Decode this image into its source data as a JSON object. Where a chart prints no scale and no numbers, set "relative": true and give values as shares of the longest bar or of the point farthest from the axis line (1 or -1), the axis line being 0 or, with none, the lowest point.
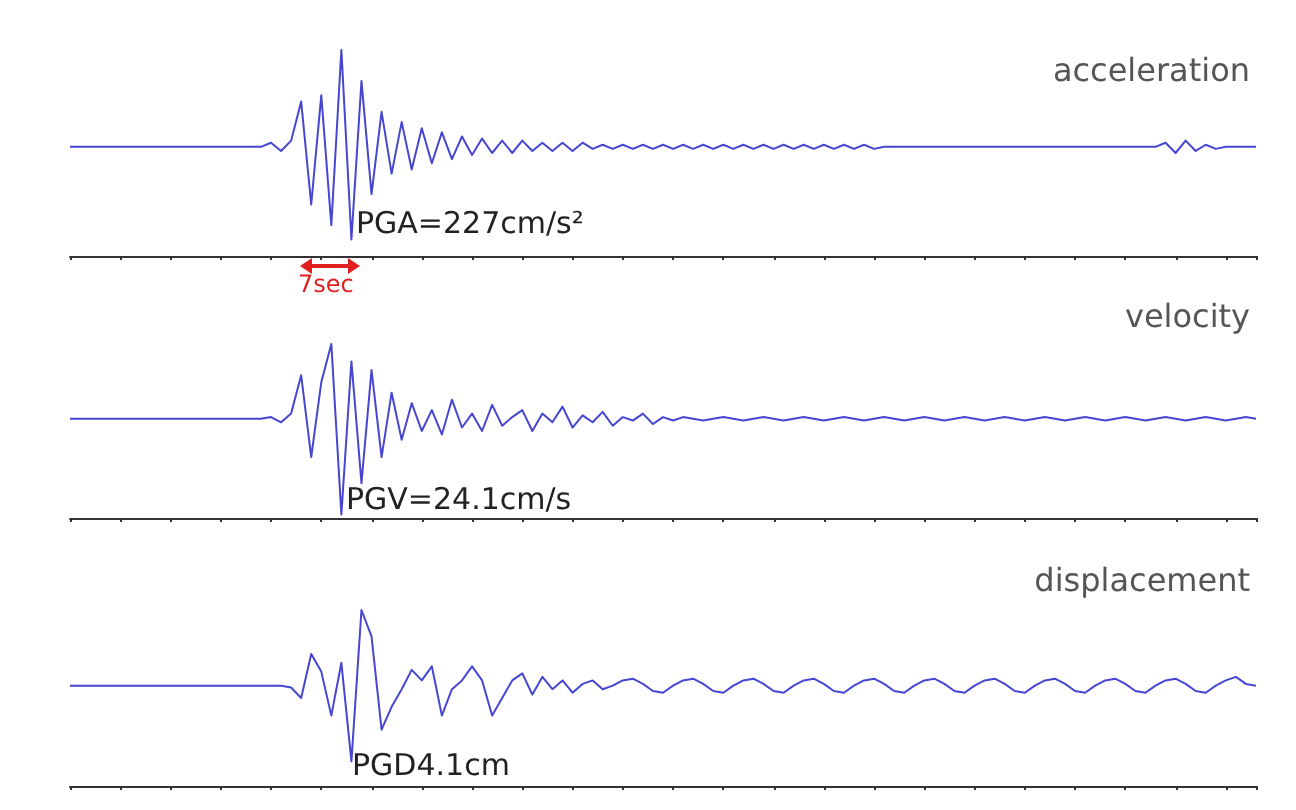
{
  "chart_data": [
    {
      "type": "line",
      "relative": true,
      "title": "acceleration",
      "annotations": [
        "PGA=227cm/s²",
        "7sec"
      ],
      "categories": [
        null,
        null,
        null,
        null,
        null,
        null,
        null,
        null,
        null,
        null,
        null,
        null,
        null,
        null,
        null,
        null,
        null,
        null,
        null,
        null,
        null,
        null,
        null,
        null,
        null,
        null,
        null,
        null,
        null,
        null,
        null,
        null,
        null,
        null,
        null,
        null,
        null,
        null,
        null,
        null,
        null,
        null,
        null,
        null,
        null,
        null,
        null,
        null,
        null,
        null,
        null,
        null,
        null,
        null,
        null,
        null,
        null,
        null,
        null,
        null,
        null,
        null,
        null,
        null,
        null,
        null,
        null,
        null,
        null,
        null,
        null,
        null,
        null,
        null,
        null,
        null,
        null,
        null,
        null,
        null,
        null,
        null,
        null,
        null,
        null,
        null,
        null,
        null,
        null,
        null,
        null,
        null,
        null,
        null,
        null,
        null,
        null,
        null,
        null,
        null,
        null,
        null,
        null,
        null,
        null,
        null,
        null,
        null,
        null,
        null,
        null,
        null,
        null,
        null,
        null,
        null,
        null,
        null,
        null
      ],
      "series": [
        {
          "color": "#4646d2",
          "values": [
            0.53,
            0.53,
            0.53,
            0.53,
            0.53,
            0.53,
            0.53,
            0.53,
            0.53,
            0.53,
            0.53,
            0.53,
            0.53,
            0.53,
            0.53,
            0.53,
            0.53,
            0.53,
            0.53,
            0.53,
            0.55,
            0.51,
            0.56,
            0.75,
            0.25,
            0.78,
            0.15,
            1.0,
            0.08,
            0.85,
            0.3,
            0.7,
            0.4,
            0.65,
            0.42,
            0.62,
            0.45,
            0.6,
            0.47,
            0.58,
            0.49,
            0.57,
            0.5,
            0.56,
            0.5,
            0.56,
            0.51,
            0.55,
            0.51,
            0.55,
            0.51,
            0.55,
            0.52,
            0.54,
            0.52,
            0.54,
            0.52,
            0.54,
            0.52,
            0.54,
            0.52,
            0.54,
            0.52,
            0.54,
            0.52,
            0.54,
            0.52,
            0.54,
            0.52,
            0.54,
            0.52,
            0.54,
            0.52,
            0.54,
            0.52,
            0.54,
            0.52,
            0.54,
            0.52,
            0.54,
            0.52,
            0.53,
            0.53,
            0.53,
            0.53,
            0.53,
            0.53,
            0.53,
            0.53,
            0.53,
            0.53,
            0.53,
            0.53,
            0.53,
            0.53,
            0.53,
            0.53,
            0.53,
            0.53,
            0.53,
            0.53,
            0.53,
            0.53,
            0.53,
            0.53,
            0.53,
            0.53,
            0.53,
            0.53,
            0.55,
            0.5,
            0.56,
            0.51,
            0.54,
            0.52,
            0.53,
            0.53,
            0.53,
            0.53
          ]
        }
      ]
    },
    {
      "type": "line",
      "relative": true,
      "title": "velocity",
      "annotations": [
        "PGV=24.1cm/s"
      ],
      "categories": [
        null,
        null,
        null,
        null,
        null,
        null,
        null,
        null,
        null,
        null,
        null,
        null,
        null,
        null,
        null,
        null,
        null,
        null,
        null,
        null,
        null,
        null,
        null,
        null,
        null,
        null,
        null,
        null,
        null,
        null,
        null,
        null,
        null,
        null,
        null,
        null,
        null,
        null,
        null,
        null,
        null,
        null,
        null,
        null,
        null,
        null,
        null,
        null,
        null,
        null,
        null,
        null,
        null,
        null,
        null,
        null,
        null,
        null,
        null,
        null,
        null,
        null,
        null,
        null,
        null,
        null,
        null,
        null,
        null,
        null,
        null,
        null,
        null,
        null,
        null,
        null,
        null,
        null,
        null,
        null,
        null,
        null,
        null,
        null,
        null,
        null,
        null,
        null,
        null,
        null,
        null,
        null,
        null,
        null,
        null,
        null,
        null,
        null,
        null,
        null,
        null,
        null,
        null,
        null,
        null,
        null,
        null,
        null,
        null,
        null,
        null,
        null,
        null,
        null,
        null,
        null,
        null,
        null,
        null
      ],
      "series": [
        {
          "color": "#4646d2",
          "values": [
            0.57,
            0.57,
            0.57,
            0.57,
            0.57,
            0.57,
            0.57,
            0.57,
            0.57,
            0.57,
            0.57,
            0.57,
            0.57,
            0.57,
            0.57,
            0.57,
            0.57,
            0.57,
            0.57,
            0.57,
            0.58,
            0.55,
            0.6,
            0.82,
            0.35,
            0.78,
            1.0,
            0.02,
            0.9,
            0.2,
            0.85,
            0.35,
            0.72,
            0.45,
            0.66,
            0.5,
            0.62,
            0.48,
            0.68,
            0.52,
            0.6,
            0.5,
            0.65,
            0.53,
            0.58,
            0.62,
            0.5,
            0.6,
            0.55,
            0.64,
            0.52,
            0.59,
            0.55,
            0.61,
            0.53,
            0.58,
            0.56,
            0.6,
            0.54,
            0.58,
            0.56,
            0.58,
            0.57,
            0.56,
            0.57,
            0.58,
            0.57,
            0.56,
            0.57,
            0.58,
            0.57,
            0.56,
            0.57,
            0.58,
            0.57,
            0.56,
            0.57,
            0.58,
            0.57,
            0.56,
            0.57,
            0.58,
            0.57,
            0.56,
            0.57,
            0.58,
            0.57,
            0.56,
            0.57,
            0.58,
            0.57,
            0.56,
            0.57,
            0.58,
            0.57,
            0.56,
            0.57,
            0.58,
            0.57,
            0.56,
            0.57,
            0.58,
            0.57,
            0.56,
            0.57,
            0.58,
            0.57,
            0.56,
            0.57,
            0.58,
            0.57,
            0.56,
            0.57,
            0.58,
            0.57,
            0.56,
            0.57,
            0.58,
            0.57
          ]
        }
      ]
    },
    {
      "type": "line",
      "relative": true,
      "title": "displacement",
      "annotations": [
        "PGD4.1cm"
      ],
      "categories": [
        null,
        null,
        null,
        null,
        null,
        null,
        null,
        null,
        null,
        null,
        null,
        null,
        null,
        null,
        null,
        null,
        null,
        null,
        null,
        null,
        null,
        null,
        null,
        null,
        null,
        null,
        null,
        null,
        null,
        null,
        null,
        null,
        null,
        null,
        null,
        null,
        null,
        null,
        null,
        null,
        null,
        null,
        null,
        null,
        null,
        null,
        null,
        null,
        null,
        null,
        null,
        null,
        null,
        null,
        null,
        null,
        null,
        null,
        null,
        null,
        null,
        null,
        null,
        null,
        null,
        null,
        null,
        null,
        null,
        null,
        null,
        null,
        null,
        null,
        null,
        null,
        null,
        null,
        null,
        null,
        null,
        null,
        null,
        null,
        null,
        null,
        null,
        null,
        null,
        null,
        null,
        null,
        null,
        null,
        null,
        null,
        null,
        null,
        null,
        null,
        null,
        null,
        null,
        null,
        null,
        null,
        null,
        null,
        null,
        null,
        null,
        null,
        null,
        null,
        null,
        null,
        null,
        null,
        null
      ],
      "series": [
        {
          "color": "#4646d2",
          "values": [
            0.57,
            0.57,
            0.57,
            0.57,
            0.57,
            0.57,
            0.57,
            0.57,
            0.57,
            0.57,
            0.57,
            0.57,
            0.57,
            0.57,
            0.57,
            0.57,
            0.57,
            0.57,
            0.57,
            0.57,
            0.57,
            0.57,
            0.56,
            0.5,
            0.75,
            0.65,
            0.4,
            0.7,
            0.14,
            1.0,
            0.85,
            0.32,
            0.45,
            0.55,
            0.66,
            0.6,
            0.68,
            0.4,
            0.55,
            0.6,
            0.68,
            0.6,
            0.4,
            0.5,
            0.6,
            0.64,
            0.52,
            0.62,
            0.55,
            0.6,
            0.53,
            0.58,
            0.6,
            0.55,
            0.57,
            0.6,
            0.61,
            0.58,
            0.54,
            0.53,
            0.57,
            0.6,
            0.61,
            0.58,
            0.54,
            0.53,
            0.57,
            0.6,
            0.61,
            0.58,
            0.54,
            0.53,
            0.57,
            0.6,
            0.61,
            0.58,
            0.54,
            0.53,
            0.57,
            0.6,
            0.61,
            0.58,
            0.54,
            0.53,
            0.57,
            0.6,
            0.61,
            0.58,
            0.54,
            0.53,
            0.57,
            0.6,
            0.61,
            0.58,
            0.54,
            0.53,
            0.57,
            0.6,
            0.61,
            0.58,
            0.54,
            0.53,
            0.57,
            0.6,
            0.61,
            0.58,
            0.54,
            0.53,
            0.57,
            0.6,
            0.61,
            0.58,
            0.54,
            0.53,
            0.57,
            0.6,
            0.62,
            0.58,
            0.57
          ]
        }
      ]
    }
  ]
}
